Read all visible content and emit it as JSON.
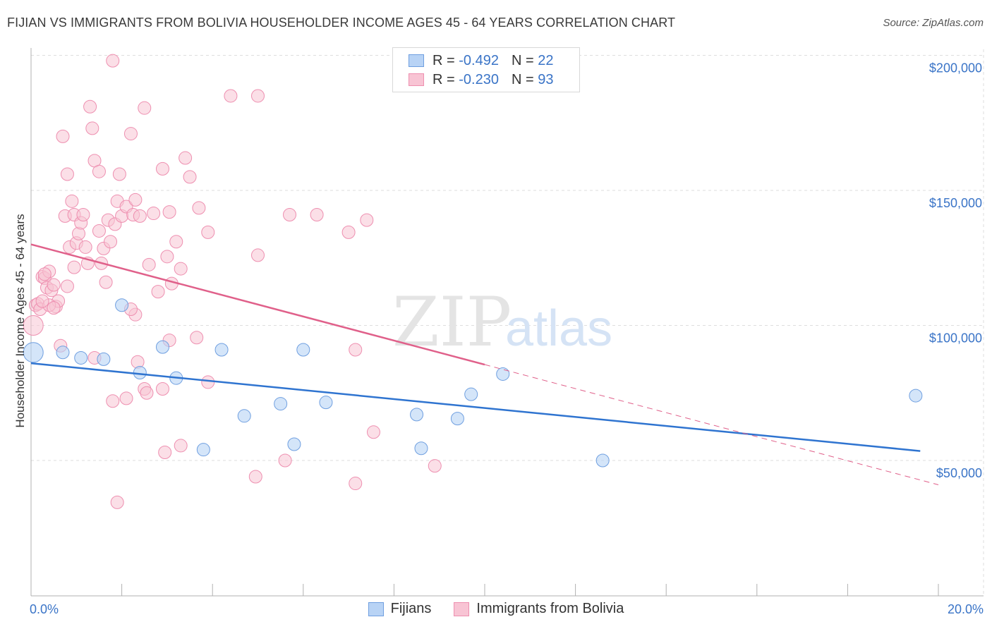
{
  "header": {
    "title": "FIJIAN VS IMMIGRANTS FROM BOLIVIA HOUSEHOLDER INCOME AGES 45 - 64 YEARS CORRELATION CHART",
    "source": "Source: ZipAtlas.com"
  },
  "watermark": {
    "zip": "ZIP",
    "atlas": "atlas"
  },
  "legend": {
    "fijians": {
      "r_label": "R =",
      "r_value": "-0.492",
      "n_label": "N =",
      "n_value": "22"
    },
    "bolivia": {
      "r_label": "R =",
      "r_value": "-0.230",
      "n_label": "N =",
      "n_value": "93"
    }
  },
  "bottom_legend": {
    "fijians": "Fijians",
    "bolivia": "Immigrants from Bolivia"
  },
  "colors": {
    "fijians_fill": "#b8d3f5",
    "fijians_stroke": "#6f9fe0",
    "fijians_line": "#2f74d0",
    "bolivia_fill": "#f8c4d4",
    "bolivia_stroke": "#ee8fb0",
    "bolivia_line": "#e0608a",
    "tick_text": "#3a74c7",
    "grid": "#dedede"
  },
  "chart_data": {
    "type": "scatter",
    "title": "FIJIAN VS IMMIGRANTS FROM BOLIVIA HOUSEHOLDER INCOME AGES 45 - 64 YEARS CORRELATION CHART",
    "xlabel": "",
    "ylabel": "Householder Income Ages 45 - 64 years",
    "xlim": [
      0,
      20
    ],
    "ylim": [
      0,
      205000
    ],
    "x_tick_labels": [
      "0.0%",
      "20.0%"
    ],
    "y_ticks": [
      50000,
      100000,
      150000,
      200000
    ],
    "y_tick_labels": [
      "$50,000",
      "$100,000",
      "$150,000",
      "$200,000"
    ],
    "grid": true,
    "legend_placement": "top-center",
    "series": [
      {
        "name": "Fijians",
        "points": [
          [
            0.05,
            90000
          ],
          [
            0.7,
            90000
          ],
          [
            1.1,
            88000
          ],
          [
            1.6,
            87500
          ],
          [
            2.0,
            107500
          ],
          [
            2.4,
            82500
          ],
          [
            2.9,
            92000
          ],
          [
            3.2,
            80500
          ],
          [
            3.8,
            54000
          ],
          [
            4.2,
            91000
          ],
          [
            4.7,
            66500
          ],
          [
            5.5,
            71000
          ],
          [
            5.8,
            56000
          ],
          [
            6.0,
            91000
          ],
          [
            6.5,
            71500
          ],
          [
            8.5,
            67000
          ],
          [
            8.6,
            54500
          ],
          [
            9.4,
            65500
          ],
          [
            9.7,
            74500
          ],
          [
            10.4,
            82000
          ],
          [
            12.6,
            50000
          ],
          [
            19.5,
            74000
          ]
        ],
        "trend": {
          "x": [
            0,
            19.6
          ],
          "y": [
            86000,
            53500
          ]
        }
      },
      {
        "name": "Immigrants from Bolivia",
        "points": [
          [
            0.05,
            100000
          ],
          [
            0.1,
            107500
          ],
          [
            0.15,
            108000
          ],
          [
            0.2,
            106000
          ],
          [
            0.25,
            118000
          ],
          [
            0.3,
            117500
          ],
          [
            0.35,
            114000
          ],
          [
            0.4,
            120000
          ],
          [
            0.45,
            113000
          ],
          [
            0.5,
            115000
          ],
          [
            0.55,
            107000
          ],
          [
            0.6,
            109000
          ],
          [
            0.65,
            92500
          ],
          [
            0.7,
            170000
          ],
          [
            0.75,
            140500
          ],
          [
            0.8,
            156000
          ],
          [
            0.85,
            129000
          ],
          [
            0.9,
            146000
          ],
          [
            0.95,
            141000
          ],
          [
            0.95,
            121500
          ],
          [
            1.0,
            130500
          ],
          [
            1.05,
            134000
          ],
          [
            1.1,
            138000
          ],
          [
            1.15,
            141000
          ],
          [
            1.2,
            129000
          ],
          [
            1.25,
            123000
          ],
          [
            1.3,
            181000
          ],
          [
            1.35,
            173000
          ],
          [
            1.4,
            161000
          ],
          [
            1.5,
            157000
          ],
          [
            1.5,
            135000
          ],
          [
            1.55,
            123000
          ],
          [
            1.6,
            128500
          ],
          [
            1.65,
            116000
          ],
          [
            1.7,
            139000
          ],
          [
            1.75,
            131000
          ],
          [
            1.8,
            198000
          ],
          [
            1.85,
            137500
          ],
          [
            1.9,
            146000
          ],
          [
            1.95,
            156000
          ],
          [
            2.0,
            140500
          ],
          [
            2.1,
            144000
          ],
          [
            2.2,
            171000
          ],
          [
            2.25,
            141000
          ],
          [
            2.3,
            146500
          ],
          [
            2.4,
            140500
          ],
          [
            2.5,
            180500
          ],
          [
            2.6,
            122500
          ],
          [
            2.7,
            141500
          ],
          [
            2.8,
            112500
          ],
          [
            2.9,
            158000
          ],
          [
            3.0,
            125500
          ],
          [
            3.05,
            142000
          ],
          [
            3.1,
            115500
          ],
          [
            3.2,
            131000
          ],
          [
            3.3,
            121000
          ],
          [
            3.4,
            162000
          ],
          [
            3.5,
            155000
          ],
          [
            3.7,
            143500
          ],
          [
            3.9,
            134500
          ],
          [
            4.4,
            185000
          ],
          [
            5.0,
            185000
          ],
          [
            5.0,
            126000
          ],
          [
            5.7,
            141000
          ],
          [
            6.3,
            141000
          ],
          [
            7.0,
            134500
          ],
          [
            7.4,
            139000
          ],
          [
            7.15,
            91000
          ],
          [
            1.4,
            88000
          ],
          [
            1.8,
            72000
          ],
          [
            2.1,
            73000
          ],
          [
            2.3,
            104000
          ],
          [
            2.35,
            86500
          ],
          [
            2.5,
            76500
          ],
          [
            2.55,
            75000
          ],
          [
            2.9,
            76500
          ],
          [
            2.95,
            53000
          ],
          [
            3.05,
            94500
          ],
          [
            3.3,
            55500
          ],
          [
            3.65,
            95500
          ],
          [
            3.9,
            79000
          ],
          [
            1.9,
            34500
          ],
          [
            4.95,
            44000
          ],
          [
            5.6,
            50000
          ],
          [
            7.15,
            41500
          ],
          [
            7.55,
            60500
          ],
          [
            8.9,
            48000
          ],
          [
            2.2,
            106000
          ],
          [
            0.4,
            107500
          ],
          [
            0.25,
            109000
          ],
          [
            0.8,
            114500
          ],
          [
            0.3,
            119000
          ],
          [
            0.5,
            106500
          ]
        ],
        "trend": {
          "x": [
            0,
            10.0
          ],
          "y": [
            130000,
            85500
          ]
        },
        "trend_dashed": {
          "x": [
            10.0,
            20
          ],
          "y": [
            85500,
            41000
          ]
        }
      }
    ]
  }
}
